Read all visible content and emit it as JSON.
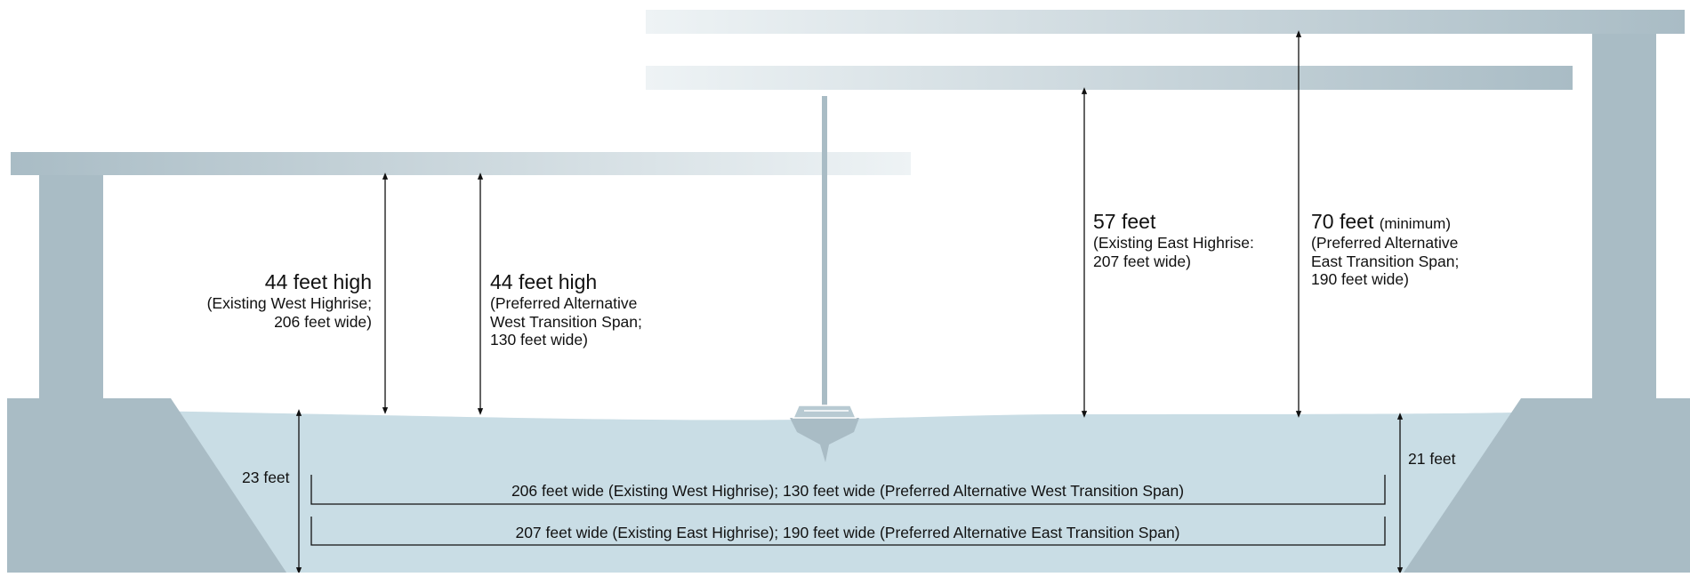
{
  "colors": {
    "structure": "#a9bcc5",
    "water": "#c9dde5",
    "deck_light": "#eef3f5",
    "line": "#111111"
  },
  "clearances": {
    "west_existing": {
      "headline": "44 feet high",
      "detail": [
        "(Existing West Highrise;",
        "206 feet wide)"
      ]
    },
    "west_preferred": {
      "headline": "44 feet high",
      "detail": [
        "(Preferred Alternative",
        "West Transition Span;",
        "130 feet wide)"
      ]
    },
    "east_existing": {
      "headline": "57 feet",
      "detail": [
        "(Existing East Highrise:",
        "207 feet wide)"
      ]
    },
    "east_preferred": {
      "headline": "70 feet",
      "qualifier": "(minimum)",
      "detail": [
        "(Preferred Alternative",
        "East Transition Span;",
        "190 feet wide)"
      ]
    }
  },
  "depths": {
    "west": "23 feet",
    "east": "21 feet"
  },
  "widths": {
    "west": "206 feet wide (Existing West Highrise); 130 feet wide (Preferred Alternative West Transition Span)",
    "east": "207 feet wide (Existing East Highrise); 190 feet wide (Preferred Alternative East Transition Span)"
  }
}
